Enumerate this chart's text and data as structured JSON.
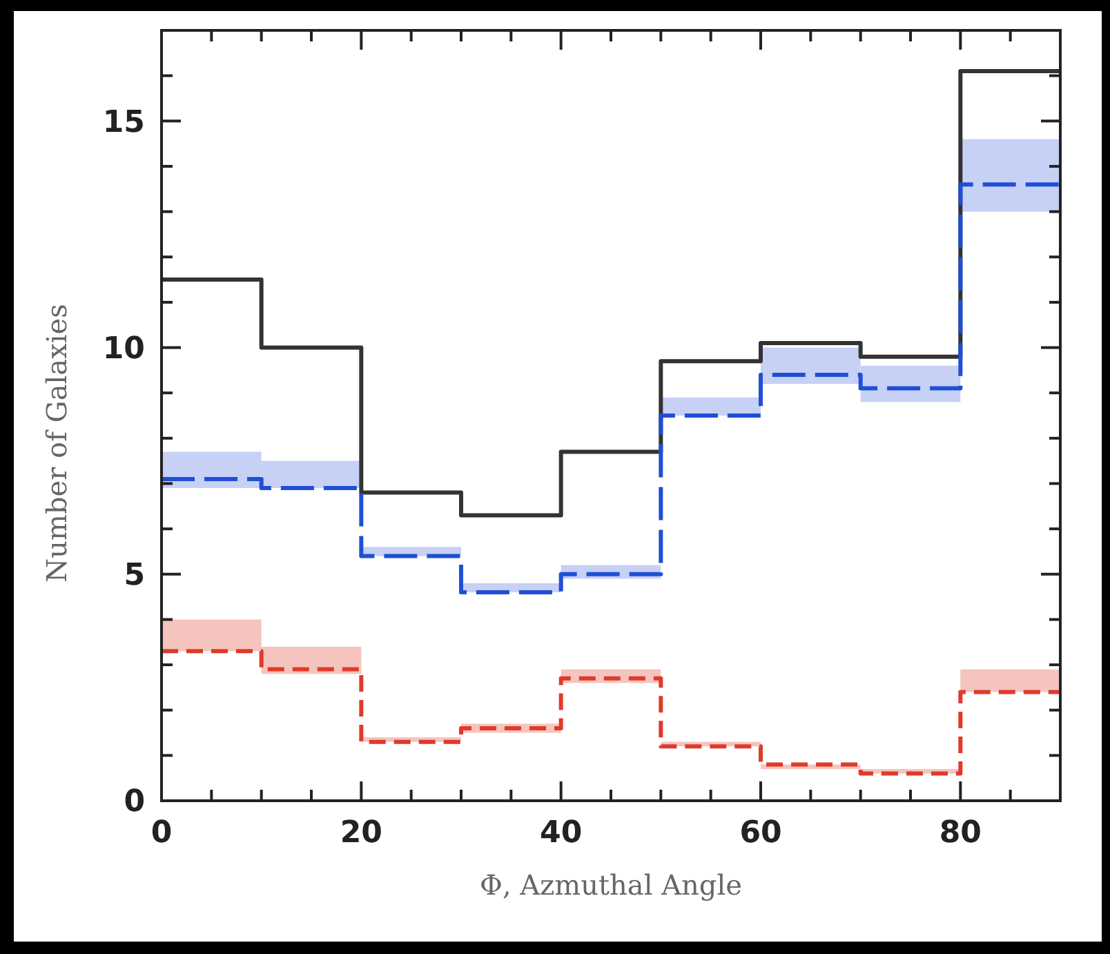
{
  "chart_data": {
    "type": "histogram",
    "xlabel": "Φ, Azmuthal Angle",
    "ylabel": "Number of Galaxies",
    "bins": [
      0,
      10,
      20,
      30,
      40,
      50,
      60,
      70,
      80,
      90
    ],
    "series": [
      {
        "type": "bar",
        "color": "#c7d0f5",
        "x": [
          5,
          15,
          25,
          35,
          45,
          55,
          65,
          75,
          85
        ],
        "base": [
          6.9,
          6.9,
          5.4,
          4.6,
          4.9,
          8.5,
          9.2,
          8.8,
          13.0
        ],
        "values": [
          0.8,
          0.6,
          0.2,
          0.2,
          0.3,
          0.4,
          0.8,
          0.8,
          1.6
        ]
      },
      {
        "type": "bar",
        "color": "#f5c4bf",
        "x": [
          5,
          15,
          25,
          35,
          45,
          55,
          65,
          75,
          85
        ],
        "base": [
          3.3,
          2.8,
          1.3,
          1.5,
          2.6,
          1.2,
          0.7,
          0.6,
          2.4
        ],
        "values": [
          0.7,
          0.6,
          0.1,
          0.2,
          0.3,
          0.1,
          0.1,
          0.1,
          0.5
        ]
      },
      {
        "color": "#333333",
        "line_style": "solid",
        "values": [
          11.5,
          10,
          6.8,
          6.3,
          7.7,
          9.7,
          10.1,
          9.8,
          16.1
        ]
      },
      {
        "color": "#1f4fd6",
        "line_style": "dashed",
        "values": [
          7.1,
          6.9,
          5.4,
          4.6,
          5.0,
          8.5,
          9.4,
          9.1,
          13.6
        ]
      },
      {
        "color": "#e03a2a",
        "line_style": "dashed",
        "values": [
          3.3,
          2.9,
          1.3,
          1.6,
          2.7,
          1.2,
          0.8,
          0.6,
          2.4
        ]
      }
    ],
    "xlim": [
      0,
      90
    ],
    "ylim": [
      0,
      17
    ],
    "xticks": [
      0,
      {
        "value": 5,
        "label": null
      },
      {
        "value": 10,
        "label": null
      },
      {
        "value": 15,
        "label": null
      },
      20,
      {
        "value": 25,
        "label": null
      },
      {
        "value": 30,
        "label": null
      },
      {
        "value": 35,
        "label": null
      },
      40,
      {
        "value": 45,
        "label": null
      },
      {
        "value": 50,
        "label": null
      },
      {
        "value": 55,
        "label": null
      },
      60,
      {
        "value": 65,
        "label": null
      },
      {
        "value": 70,
        "label": null
      },
      {
        "value": 75,
        "label": null
      },
      80,
      {
        "value": 85,
        "label": null
      },
      {
        "value": 90,
        "label": null
      }
    ],
    "yticks": [
      0,
      {
        "value": 1,
        "label": null
      },
      {
        "value": 2,
        "label": null
      },
      {
        "value": 3,
        "label": null
      },
      {
        "value": 4,
        "label": null
      },
      5,
      {
        "value": 6,
        "label": null
      },
      {
        "value": 7,
        "label": null
      },
      {
        "value": 8,
        "label": null
      },
      {
        "value": 9,
        "label": null
      },
      10,
      {
        "value": 11,
        "label": null
      },
      {
        "value": 12,
        "label": null
      },
      {
        "value": 13,
        "label": null
      },
      {
        "value": 14,
        "label": null
      },
      15,
      {
        "value": 16,
        "label": null
      },
      {
        "value": 17,
        "label": null
      }
    ],
    "grid": false
  }
}
